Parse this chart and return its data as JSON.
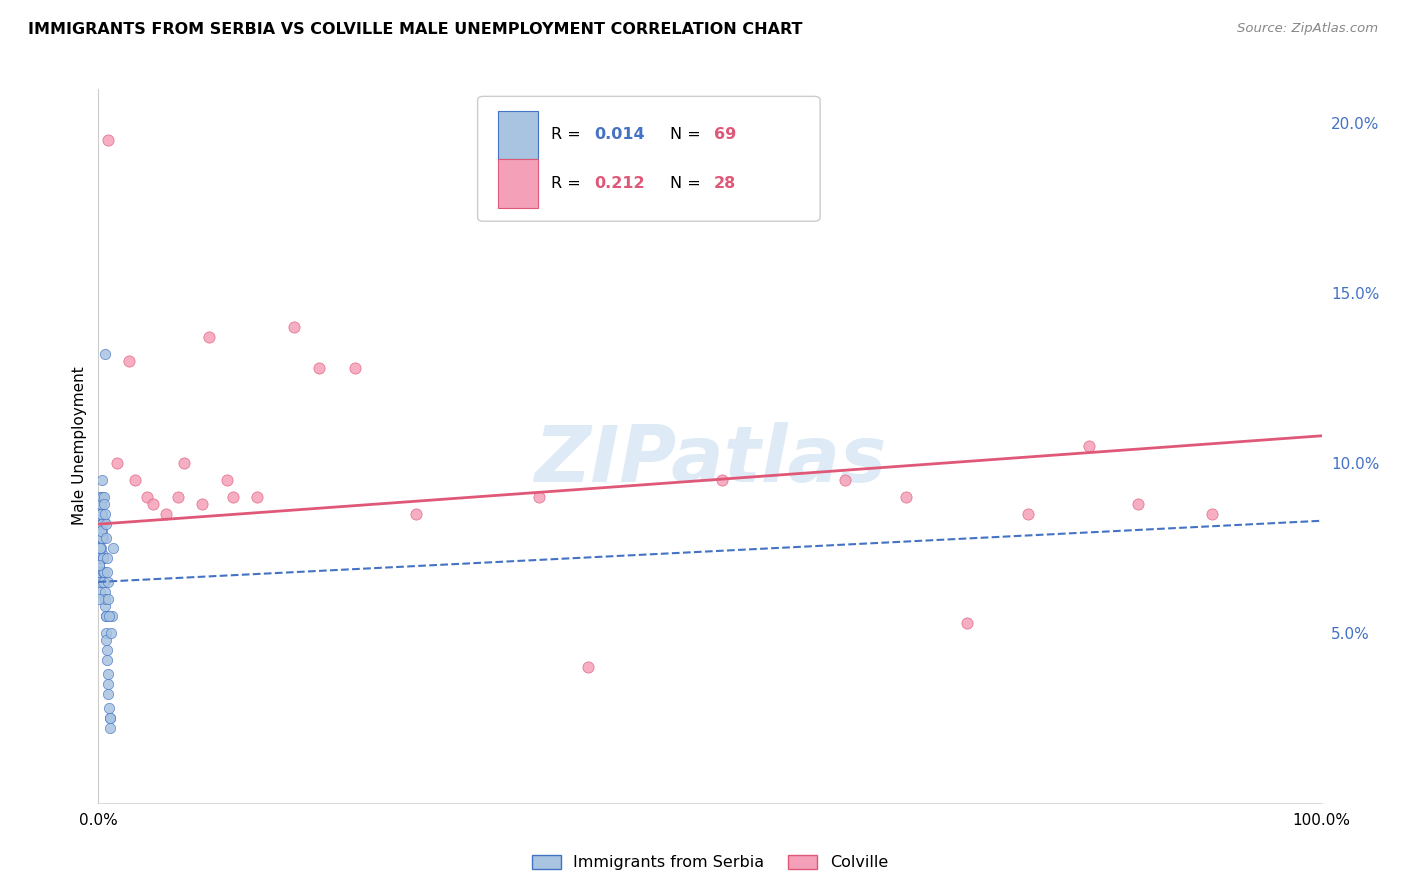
{
  "title": "IMMIGRANTS FROM SERBIA VS COLVILLE MALE UNEMPLOYMENT CORRELATION CHART",
  "source": "Source: ZipAtlas.com",
  "ylabel": "Male Unemployment",
  "xlim": [
    0,
    100
  ],
  "ylim": [
    0,
    21
  ],
  "ytick_labels": [
    "5.0%",
    "10.0%",
    "15.0%",
    "20.0%"
  ],
  "ytick_values": [
    5,
    10,
    15,
    20
  ],
  "serbia_color": "#a8c4e0",
  "colville_color": "#f4a0b8",
  "serbia_edge_color": "#4472c4",
  "colville_edge_color": "#e05878",
  "serbia_line_color": "#4472c4",
  "colville_line_color": "#e05878",
  "r1_color": "#4472c4",
  "n1_color": "#e05878",
  "r2_color": "#e05878",
  "n2_color": "#e05878",
  "watermark_color": "#c8dff0",
  "serbia_scatter_x": [
    0.5,
    1.2,
    0.3,
    0.25,
    0.1,
    0.15,
    0.2,
    0.18,
    0.22,
    0.28,
    0.12,
    0.08,
    0.35,
    0.4,
    0.45,
    0.05,
    0.07,
    0.1,
    0.15,
    0.2,
    0.25,
    0.3,
    0.35,
    0.4,
    0.45,
    0.5,
    0.55,
    0.6,
    0.12,
    0.18,
    0.22,
    0.28,
    0.32,
    0.38,
    0.42,
    0.48,
    0.52,
    0.58,
    0.62,
    0.65,
    0.68,
    0.72,
    0.75,
    0.78,
    0.82,
    0.88,
    0.92,
    0.98,
    1.02,
    1.08,
    0.05,
    0.08,
    0.12,
    0.18,
    0.22,
    0.28,
    0.32,
    0.38,
    0.42,
    0.48,
    0.52,
    0.58,
    0.62,
    0.68,
    0.72,
    0.78,
    0.82,
    0.88,
    0.92
  ],
  "serbia_scatter_y": [
    13.2,
    7.5,
    8.5,
    8.0,
    7.8,
    7.5,
    8.2,
    8.5,
    8.8,
    7.2,
    6.8,
    7.0,
    7.3,
    7.8,
    8.3,
    7.2,
    6.8,
    6.5,
    6.2,
    7.5,
    7.8,
    8.0,
    7.2,
    6.8,
    6.5,
    6.2,
    5.8,
    5.5,
    9.0,
    8.8,
    8.5,
    8.2,
    7.8,
    7.2,
    6.8,
    6.5,
    6.0,
    5.5,
    5.0,
    4.8,
    4.5,
    4.2,
    3.8,
    3.5,
    3.2,
    2.8,
    2.5,
    2.2,
    5.0,
    5.5,
    6.0,
    7.0,
    7.5,
    8.0,
    8.5,
    9.0,
    9.5,
    6.5,
    9.0,
    8.8,
    8.5,
    8.2,
    7.8,
    7.2,
    6.8,
    6.5,
    6.0,
    5.5,
    2.5
  ],
  "colville_scatter_x": [
    0.8,
    2.5,
    4.0,
    5.5,
    7.0,
    8.5,
    10.5,
    13.0,
    16.0,
    21.0,
    26.0,
    36.0,
    40.0,
    51.0,
    61.0,
    71.0,
    81.0,
    85.0,
    91.0,
    1.5,
    3.0,
    4.5,
    6.5,
    9.0,
    11.0,
    66.0,
    76.0,
    18.0
  ],
  "colville_scatter_y": [
    19.5,
    13.0,
    9.0,
    8.5,
    10.0,
    8.8,
    9.5,
    9.0,
    14.0,
    12.8,
    8.5,
    9.0,
    4.0,
    9.5,
    9.5,
    5.3,
    10.5,
    8.8,
    8.5,
    10.0,
    9.5,
    8.8,
    9.0,
    13.7,
    9.0,
    9.0,
    8.5,
    12.8
  ],
  "serbia_trend_x": [
    0,
    100
  ],
  "serbia_trend_y": [
    6.5,
    8.3
  ],
  "colville_trend_x": [
    0,
    100
  ],
  "colville_trend_y": [
    8.2,
    10.8
  ]
}
